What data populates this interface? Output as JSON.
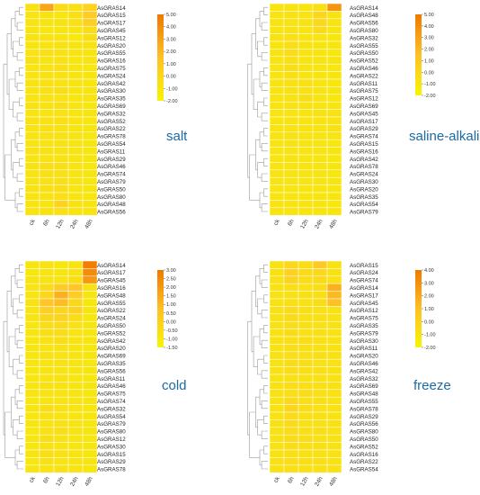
{
  "chart_data": [
    {
      "type": "heatmap",
      "title": "salt",
      "columns": [
        "ck",
        "6h",
        "12h",
        "24h",
        "48h"
      ],
      "rows": [
        "AsGRAS14",
        "AsGRAS15",
        "AsGRAS17",
        "AsGRAS45",
        "AsGRAS12",
        "AsGRAS20",
        "AsGRAS55",
        "AsGRAS16",
        "AsGRAS75",
        "AsGRAS24",
        "AsGRAS42",
        "AsGRAS30",
        "AsGRAS35",
        "AsGRAS69",
        "AsGRAS32",
        "AsGRAS52",
        "AsGRAS22",
        "AsGRAS78",
        "AsGRAS54",
        "AsGRAS11",
        "AsGRAS29",
        "AsGRAS46",
        "AsGRAS74",
        "AsGRAS79",
        "AsGRAS50",
        "AsGRAS80",
        "AsGRAS48",
        "AsGRAS56"
      ],
      "scale_ticks": [
        "5.00",
        "4.00",
        "3.00",
        "2.00",
        "1.00",
        "0.00",
        "-1.00",
        "-2.00"
      ],
      "scale_range": [
        -2,
        5
      ],
      "values": [
        [
          -0.6,
          2.8,
          -0.2,
          -0.5,
          0.4
        ],
        [
          -0.9,
          -0.7,
          -1.0,
          -0.5,
          0.8
        ],
        [
          -0.8,
          -0.9,
          -0.7,
          -0.6,
          0.6
        ],
        [
          -0.9,
          -1.0,
          -0.9,
          -0.8,
          -0.3
        ],
        [
          -0.7,
          -0.6,
          -0.8,
          -1.1,
          -0.4
        ],
        [
          -0.9,
          -0.8,
          -0.6,
          -0.9,
          -0.7
        ],
        [
          -0.8,
          -0.5,
          -0.7,
          -0.8,
          -0.9
        ],
        [
          -0.6,
          -0.9,
          -0.6,
          -1.0,
          -0.8
        ],
        [
          -0.9,
          -0.6,
          -0.5,
          -0.9,
          -1.0
        ],
        [
          -0.8,
          -0.7,
          -0.6,
          -0.9,
          -0.9
        ],
        [
          -0.7,
          -0.5,
          -0.7,
          -0.8,
          -1.0
        ],
        [
          -0.9,
          -0.7,
          -0.4,
          -0.9,
          -0.9
        ],
        [
          -0.8,
          -0.6,
          -0.8,
          -1.0,
          -0.8
        ],
        [
          -0.7,
          -0.7,
          -0.5,
          -0.8,
          -1.0
        ],
        [
          -0.9,
          -0.8,
          -0.6,
          -0.9,
          -0.9
        ],
        [
          -0.6,
          -0.7,
          -0.5,
          -0.8,
          -1.0
        ],
        [
          -0.8,
          -0.5,
          -0.7,
          -0.9,
          -0.9
        ],
        [
          -0.9,
          -0.6,
          -0.7,
          -0.8,
          -1.0
        ],
        [
          -0.8,
          -0.8,
          -0.6,
          -0.9,
          -0.9
        ],
        [
          -0.6,
          -0.7,
          -0.6,
          -0.8,
          -1.0
        ],
        [
          -0.9,
          -0.6,
          -0.7,
          -0.8,
          -0.9
        ],
        [
          -0.7,
          -0.4,
          -0.5,
          -0.8,
          -1.0
        ],
        [
          -0.8,
          -0.5,
          -0.6,
          -0.9,
          -0.9
        ],
        [
          -0.9,
          -0.6,
          -0.5,
          -0.8,
          -1.0
        ],
        [
          -0.7,
          -0.5,
          -0.4,
          -0.9,
          -0.9
        ],
        [
          -0.8,
          -0.7,
          -0.5,
          -0.8,
          -1.0
        ],
        [
          -0.9,
          -0.8,
          0.3,
          -0.7,
          -0.9
        ],
        [
          -0.8,
          -0.7,
          -0.6,
          -0.8,
          -0.9
        ]
      ]
    },
    {
      "type": "heatmap",
      "title": "saline-alkali",
      "columns": [
        "ck",
        "6h",
        "12h",
        "24h",
        "48h"
      ],
      "rows": [
        "AsGRAS14",
        "AsGRAS48",
        "AsGRAS56",
        "AsGRAS80",
        "AsGRAS32",
        "AsGRAS55",
        "AsGRAS50",
        "AsGRAS52",
        "AsGRAS46",
        "AsGRAS22",
        "AsGRAS11",
        "AsGRAS75",
        "AsGRAS12",
        "AsGRAS69",
        "AsGRAS45",
        "AsGRAS17",
        "AsGRAS29",
        "AsGRAS74",
        "AsGRAS15",
        "AsGRAS16",
        "AsGRAS42",
        "AsGRAS78",
        "AsGRAS24",
        "AsGRAS30",
        "AsGRAS20",
        "AsGRAS35",
        "AsGRAS54",
        "AsGRAS79"
      ],
      "scale_ticks": [
        "5.00",
        "4.00",
        "3.00",
        "2.00",
        "1.00",
        "0.00",
        "-1.00",
        "-2.00"
      ],
      "scale_range": [
        -2,
        5
      ],
      "values": [
        [
          -0.8,
          -0.7,
          -0.9,
          -0.5,
          3.6
        ],
        [
          -0.9,
          -0.6,
          -0.8,
          0.2,
          -0.7
        ],
        [
          -0.8,
          -0.8,
          -0.7,
          0.0,
          -0.8
        ],
        [
          -0.9,
          -0.7,
          -0.8,
          -0.2,
          -0.9
        ],
        [
          -0.7,
          -0.5,
          -0.9,
          -0.8,
          -1.0
        ],
        [
          -0.9,
          -0.4,
          -0.7,
          -0.9,
          -0.9
        ],
        [
          -0.8,
          -0.3,
          -0.8,
          -0.9,
          -1.0
        ],
        [
          -0.9,
          -0.5,
          -0.9,
          -0.8,
          -0.9
        ],
        [
          -0.8,
          -0.4,
          -0.7,
          -0.9,
          -1.0
        ],
        [
          -0.9,
          -0.5,
          -0.8,
          -0.9,
          -0.9
        ],
        [
          -0.8,
          -0.6,
          -0.5,
          -0.9,
          -1.0
        ],
        [
          -0.9,
          -0.7,
          -0.6,
          -0.8,
          -0.9
        ],
        [
          -0.8,
          -0.7,
          -0.4,
          -0.9,
          -1.0
        ],
        [
          -0.9,
          -0.6,
          -0.7,
          -0.9,
          -0.9
        ],
        [
          -0.8,
          -0.8,
          -0.9,
          -0.7,
          -0.6
        ],
        [
          -0.9,
          -0.7,
          -0.8,
          -0.8,
          -0.7
        ],
        [
          -0.8,
          -0.8,
          -0.7,
          -0.9,
          -0.6
        ],
        [
          -0.9,
          -0.6,
          -0.8,
          -0.9,
          -0.9
        ],
        [
          -0.8,
          -0.7,
          -0.9,
          -0.8,
          -1.0
        ],
        [
          -0.9,
          -0.8,
          -0.8,
          -0.9,
          -0.9
        ],
        [
          -0.8,
          -0.7,
          -0.9,
          -0.9,
          -1.0
        ],
        [
          -0.9,
          -0.8,
          -0.8,
          -0.8,
          -0.9
        ],
        [
          -0.8,
          -0.9,
          -0.9,
          -0.9,
          -1.0
        ],
        [
          -0.9,
          -0.8,
          -0.8,
          -0.9,
          -0.9
        ],
        [
          -0.8,
          -0.9,
          -0.9,
          -0.8,
          -1.0
        ],
        [
          -0.9,
          -0.8,
          -0.9,
          -0.9,
          -0.9
        ],
        [
          -0.8,
          -0.9,
          -0.8,
          -0.9,
          -1.0
        ],
        [
          -0.9,
          -0.8,
          -0.9,
          -0.9,
          -0.9
        ]
      ]
    },
    {
      "type": "heatmap",
      "title": "cold",
      "columns": [
        "ck",
        "6h",
        "12h",
        "24h",
        "48h"
      ],
      "rows": [
        "AsGRAS14",
        "AsGRAS17",
        "AsGRAS45",
        "AsGRAS16",
        "AsGRAS48",
        "AsGRAS55",
        "AsGRAS22",
        "AsGRAS24",
        "AsGRAS50",
        "AsGRAS52",
        "AsGRAS42",
        "AsGRAS20",
        "AsGRAS69",
        "AsGRAS35",
        "AsGRAS56",
        "AsGRAS11",
        "AsGRAS46",
        "AsGRAS75",
        "AsGRAS74",
        "AsGRAS32",
        "AsGRAS54",
        "AsGRAS79",
        "AsGRAS80",
        "AsGRAS12",
        "AsGRAS30",
        "AsGRAS15",
        "AsGRAS29",
        "AsGRAS78"
      ],
      "scale_ticks": [
        "3.00",
        "2.50",
        "2.00",
        "1.50",
        "1.00",
        "0.50",
        "0.00",
        "-0.50",
        "-1.00",
        "-1.50"
      ],
      "scale_range": [
        -1.5,
        3
      ],
      "values": [
        [
          -0.8,
          -0.6,
          -0.9,
          -0.7,
          2.8
        ],
        [
          -0.9,
          -0.7,
          -0.8,
          -0.6,
          2.4
        ],
        [
          -0.8,
          -0.8,
          -0.7,
          -0.5,
          2.0
        ],
        [
          -0.7,
          -0.3,
          0.4,
          0.6,
          -0.6
        ],
        [
          -0.8,
          -0.1,
          1.2,
          0.3,
          -0.8
        ],
        [
          -0.6,
          0.6,
          0.8,
          -0.2,
          -0.9
        ],
        [
          -0.7,
          0.2,
          -0.1,
          0.1,
          -0.8
        ],
        [
          -0.8,
          -0.2,
          0.0,
          -0.4,
          -0.9
        ],
        [
          -0.9,
          -0.4,
          -0.3,
          -0.6,
          -0.8
        ],
        [
          -0.8,
          -0.5,
          -0.4,
          -0.7,
          -0.9
        ],
        [
          -0.9,
          -0.6,
          -0.5,
          -0.7,
          -0.8
        ],
        [
          -0.8,
          -0.7,
          -0.6,
          -0.8,
          -0.9
        ],
        [
          -0.9,
          -0.6,
          -0.7,
          -0.8,
          -0.8
        ],
        [
          -0.8,
          -0.7,
          -0.6,
          -0.7,
          -0.9
        ],
        [
          -0.9,
          -0.8,
          -0.7,
          -0.8,
          -0.8
        ],
        [
          -0.8,
          -0.7,
          -0.6,
          -0.8,
          -0.9
        ],
        [
          -0.9,
          -0.6,
          -0.7,
          -0.8,
          -0.8
        ],
        [
          -0.8,
          -0.7,
          -0.8,
          -0.7,
          -0.9
        ],
        [
          -0.9,
          -0.8,
          -0.7,
          -0.8,
          -0.8
        ],
        [
          -0.8,
          -0.5,
          -0.6,
          -0.7,
          -0.9
        ],
        [
          -0.9,
          -0.6,
          -0.7,
          -0.8,
          -0.8
        ],
        [
          -0.8,
          -0.7,
          -0.6,
          -0.7,
          -0.9
        ],
        [
          -0.9,
          -0.6,
          -0.5,
          -0.8,
          -0.8
        ],
        [
          -0.8,
          -0.5,
          -0.6,
          -0.7,
          -0.9
        ],
        [
          -0.9,
          -0.6,
          -0.7,
          -0.8,
          -0.8
        ],
        [
          -0.8,
          -0.5,
          -0.6,
          -0.7,
          -0.9
        ],
        [
          -0.9,
          -0.6,
          -0.7,
          -0.8,
          -0.8
        ],
        [
          -0.8,
          -0.7,
          -0.6,
          -0.7,
          -0.9
        ]
      ]
    },
    {
      "type": "heatmap",
      "title": "freeze",
      "columns": [
        "ck",
        "6h",
        "12h",
        "24h",
        "48h"
      ],
      "rows": [
        "AsGRAS15",
        "AsGRAS24",
        "AsGRAS74",
        "AsGRAS14",
        "AsGRAS17",
        "AsGRAS45",
        "AsGRAS12",
        "AsGRAS75",
        "AsGRAS35",
        "AsGRAS79",
        "AsGRAS30",
        "AsGRAS11",
        "AsGRAS20",
        "AsGRAS46",
        "AsGRAS42",
        "AsGRAS32",
        "AsGRAS69",
        "AsGRAS48",
        "AsGRAS55",
        "AsGRAS78",
        "AsGRAS29",
        "AsGRAS56",
        "AsGRAS80",
        "AsGRAS50",
        "AsGRAS52",
        "AsGRAS16",
        "AsGRAS22",
        "AsGRAS54"
      ],
      "scale_ticks": [
        "4.00",
        "3.00",
        "2.00",
        "1.00",
        "0.00",
        "-1.00",
        "-2.00"
      ],
      "scale_range": [
        -2,
        4
      ],
      "values": [
        [
          -0.8,
          -0.3,
          -0.6,
          0.6,
          -0.8
        ],
        [
          -0.9,
          0.2,
          -0.5,
          -0.3,
          -0.9
        ],
        [
          -0.8,
          0.0,
          -0.6,
          -0.5,
          -0.8
        ],
        [
          -0.9,
          -0.7,
          -0.8,
          -0.6,
          1.6
        ],
        [
          -0.8,
          -0.8,
          -0.7,
          -0.7,
          1.3
        ],
        [
          -0.9,
          -0.7,
          -0.8,
          -0.6,
          1.0
        ],
        [
          -0.8,
          -0.4,
          -0.7,
          -0.8,
          -0.9
        ],
        [
          -0.9,
          -0.5,
          -0.8,
          -0.7,
          -0.8
        ],
        [
          -0.8,
          -0.6,
          -0.7,
          -0.8,
          -0.9
        ],
        [
          -0.9,
          -0.5,
          -0.8,
          -0.7,
          -0.8
        ],
        [
          -0.8,
          -0.7,
          -0.6,
          -0.8,
          -0.9
        ],
        [
          -0.9,
          -0.6,
          -0.7,
          -0.8,
          -0.8
        ],
        [
          -0.8,
          -0.7,
          -0.8,
          -0.7,
          -0.9
        ],
        [
          -0.9,
          -0.5,
          -0.6,
          -0.8,
          -0.8
        ],
        [
          -0.8,
          -0.6,
          -0.7,
          -0.7,
          -0.9
        ],
        [
          -0.9,
          -0.7,
          -0.8,
          -0.8,
          -0.8
        ],
        [
          -0.8,
          -0.6,
          -0.7,
          -0.7,
          -0.9
        ],
        [
          -0.9,
          -0.7,
          -0.6,
          -0.8,
          -0.8
        ],
        [
          -0.8,
          -0.3,
          -0.7,
          -0.7,
          -0.9
        ],
        [
          -0.9,
          -0.2,
          -0.6,
          -0.8,
          -0.8
        ],
        [
          -0.8,
          -0.4,
          -0.7,
          -0.7,
          -0.9
        ],
        [
          -0.9,
          -0.5,
          -0.8,
          -0.8,
          -0.8
        ],
        [
          -0.8,
          -0.6,
          -0.7,
          -0.7,
          -0.9
        ],
        [
          -0.9,
          -0.5,
          -0.6,
          -0.8,
          -0.8
        ],
        [
          -0.8,
          -0.6,
          -0.7,
          -0.7,
          -0.9
        ],
        [
          -0.9,
          -0.7,
          -0.8,
          -0.8,
          -0.8
        ],
        [
          -0.8,
          -0.6,
          -0.7,
          -0.7,
          -0.9
        ],
        [
          -0.9,
          -0.7,
          -0.8,
          -0.8,
          -0.8
        ]
      ]
    }
  ],
  "colors": {
    "low": "#f5f500",
    "mid": "#ffc72a",
    "high": "#f07800",
    "cell_border": "#ffffff",
    "title": "#1a6aa3"
  }
}
